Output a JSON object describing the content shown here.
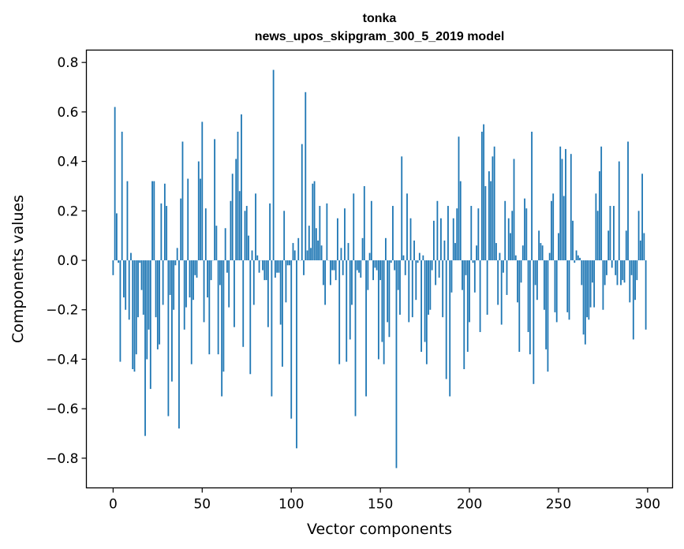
{
  "chart_data": {
    "type": "bar",
    "title_line1": "tonka",
    "title_line2": "news_upos_skipgram_300_5_2019 model",
    "xlabel": "Vector components",
    "ylabel": "Components values",
    "xlim": [
      -15,
      314
    ],
    "ylim": [
      -0.92,
      0.85
    ],
    "x_ticks": [
      0,
      50,
      100,
      150,
      200,
      250,
      300
    ],
    "y_ticks": [
      -0.8,
      -0.6,
      -0.4,
      -0.2,
      0.0,
      0.2,
      0.4,
      0.6,
      0.8
    ],
    "y_tick_labels": [
      "−0.8",
      "−0.6",
      "−0.4",
      "−0.2",
      "0.0",
      "0.2",
      "0.4",
      "0.6",
      "0.8"
    ],
    "bar_color": "#1f77b4",
    "grid": false,
    "values": [
      -0.06,
      0.62,
      0.19,
      -0.01,
      -0.41,
      0.52,
      -0.15,
      -0.2,
      0.32,
      -0.24,
      0.03,
      -0.44,
      -0.45,
      -0.38,
      -0.23,
      -0.01,
      -0.12,
      -0.22,
      -0.71,
      -0.4,
      -0.28,
      -0.52,
      0.32,
      0.32,
      -0.23,
      -0.36,
      -0.34,
      0.23,
      -0.18,
      0.31,
      0.22,
      -0.63,
      -0.14,
      -0.49,
      -0.2,
      -0.02,
      0.05,
      -0.68,
      0.25,
      0.48,
      -0.28,
      -0.19,
      0.33,
      -0.15,
      -0.42,
      -0.16,
      -0.06,
      -0.07,
      0.4,
      0.33,
      0.56,
      -0.25,
      0.21,
      -0.15,
      -0.38,
      -0.08,
      0.0,
      0.49,
      0.14,
      -0.38,
      -0.1,
      -0.55,
      -0.45,
      0.13,
      -0.05,
      -0.19,
      0.24,
      0.35,
      -0.27,
      0.41,
      0.52,
      0.28,
      0.59,
      -0.35,
      0.2,
      0.22,
      0.1,
      -0.46,
      0.04,
      -0.18,
      0.27,
      0.02,
      -0.05,
      0.0,
      -0.04,
      -0.08,
      -0.08,
      -0.27,
      0.23,
      -0.55,
      0.77,
      -0.07,
      -0.05,
      -0.05,
      -0.26,
      -0.43,
      0.2,
      -0.17,
      -0.02,
      -0.02,
      -0.64,
      0.07,
      0.04,
      -0.76,
      0.09,
      0.0,
      0.47,
      -0.06,
      0.68,
      0.04,
      0.14,
      0.05,
      0.31,
      0.32,
      0.13,
      0.08,
      0.22,
      0.06,
      -0.1,
      -0.18,
      0.23,
      0.0,
      -0.1,
      -0.04,
      -0.04,
      -0.08,
      0.17,
      -0.42,
      0.05,
      -0.06,
      0.21,
      -0.41,
      0.07,
      -0.32,
      -0.18,
      0.27,
      -0.63,
      -0.04,
      -0.05,
      -0.07,
      0.09,
      0.3,
      -0.55,
      -0.12,
      0.03,
      0.24,
      -0.08,
      -0.03,
      -0.04,
      -0.4,
      -0.08,
      -0.33,
      -0.42,
      0.09,
      -0.25,
      -0.31,
      -0.01,
      0.22,
      -0.04,
      -0.84,
      -0.12,
      -0.22,
      0.42,
      0.02,
      -0.06,
      0.27,
      -0.25,
      0.17,
      -0.23,
      0.08,
      -0.16,
      -0.01,
      0.03,
      -0.37,
      0.02,
      -0.33,
      -0.42,
      -0.22,
      -0.2,
      -0.04,
      0.16,
      -0.1,
      0.24,
      -0.07,
      0.17,
      -0.23,
      0.08,
      -0.48,
      0.22,
      -0.55,
      -0.13,
      0.17,
      0.07,
      0.21,
      0.5,
      0.32,
      -0.12,
      -0.44,
      -0.06,
      -0.37,
      -0.25,
      0.22,
      -0.01,
      -0.13,
      0.06,
      0.21,
      -0.29,
      0.52,
      0.55,
      0.3,
      -0.22,
      0.36,
      0.32,
      0.42,
      0.46,
      0.07,
      -0.18,
      0.03,
      -0.26,
      -0.05,
      0.24,
      -0.14,
      0.17,
      0.11,
      0.2,
      0.41,
      0.02,
      -0.17,
      -0.37,
      -0.09,
      0.06,
      0.25,
      0.21,
      -0.29,
      -0.38,
      0.52,
      -0.5,
      -0.1,
      -0.16,
      0.12,
      0.07,
      0.06,
      -0.2,
      -0.36,
      -0.45,
      0.03,
      0.24,
      0.27,
      -0.21,
      -0.25,
      0.11,
      0.46,
      0.41,
      0.26,
      0.45,
      -0.21,
      -0.24,
      0.43,
      0.16,
      -0.01,
      0.04,
      0.02,
      0.01,
      -0.1,
      -0.3,
      -0.34,
      -0.23,
      -0.24,
      -0.19,
      -0.09,
      -0.19,
      0.27,
      0.2,
      0.36,
      0.46,
      -0.2,
      -0.1,
      -0.06,
      0.12,
      0.22,
      -0.03,
      0.22,
      -0.06,
      -0.1,
      0.4,
      -0.1,
      -0.08,
      -0.09,
      0.12,
      0.48,
      -0.17,
      -0.06,
      -0.32,
      -0.16,
      -0.08,
      0.2,
      0.08,
      0.35,
      0.11,
      -0.28
    ]
  }
}
